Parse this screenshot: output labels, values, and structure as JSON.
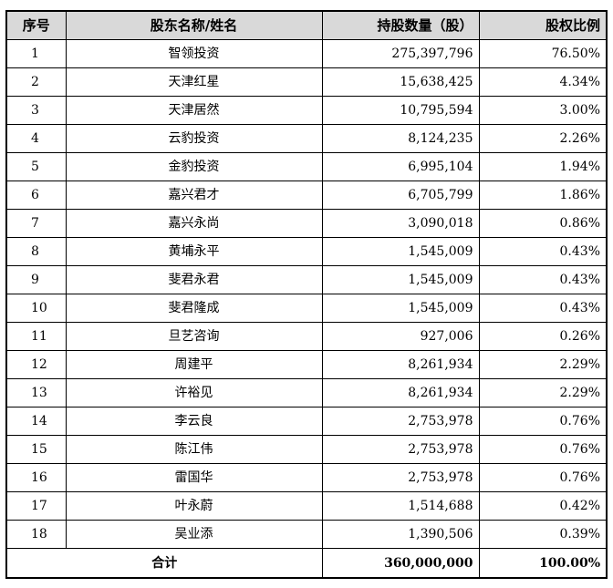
{
  "table": {
    "headers": [
      "序号",
      "股东名称/姓名",
      "持股数量（股）",
      "股权比例"
    ],
    "rows": [
      {
        "no": "1",
        "name": "智领投资",
        "shares": "275,397,796",
        "ratio": "76.50%"
      },
      {
        "no": "2",
        "name": "天津红星",
        "shares": "15,638,425",
        "ratio": "4.34%"
      },
      {
        "no": "3",
        "name": "天津居然",
        "shares": "10,795,594",
        "ratio": "3.00%"
      },
      {
        "no": "4",
        "name": "云豹投资",
        "shares": "8,124,235",
        "ratio": "2.26%"
      },
      {
        "no": "5",
        "name": "金豹投资",
        "shares": "6,995,104",
        "ratio": "1.94%"
      },
      {
        "no": "6",
        "name": "嘉兴君才",
        "shares": "6,705,799",
        "ratio": "1.86%"
      },
      {
        "no": "7",
        "name": "嘉兴永尚",
        "shares": "3,090,018",
        "ratio": "0.86%"
      },
      {
        "no": "8",
        "name": "黄埔永平",
        "shares": "1,545,009",
        "ratio": "0.43%"
      },
      {
        "no": "9",
        "name": "斐君永君",
        "shares": "1,545,009",
        "ratio": "0.43%"
      },
      {
        "no": "10",
        "name": "斐君隆成",
        "shares": "1,545,009",
        "ratio": "0.43%"
      },
      {
        "no": "11",
        "name": "旦艺咨询",
        "shares": "927,006",
        "ratio": "0.26%"
      },
      {
        "no": "12",
        "name": "周建平",
        "shares": "8,261,934",
        "ratio": "2.29%"
      },
      {
        "no": "13",
        "name": "许裕见",
        "shares": "8,261,934",
        "ratio": "2.29%"
      },
      {
        "no": "14",
        "name": "李云良",
        "shares": "2,753,978",
        "ratio": "0.76%"
      },
      {
        "no": "15",
        "name": "陈江伟",
        "shares": "2,753,978",
        "ratio": "0.76%"
      },
      {
        "no": "16",
        "name": "雷国华",
        "shares": "2,753,978",
        "ratio": "0.76%"
      },
      {
        "no": "17",
        "name": "叶永蔚",
        "shares": "1,514,688",
        "ratio": "0.42%"
      },
      {
        "no": "18",
        "name": "吴业添",
        "shares": "1,390,506",
        "ratio": "0.39%"
      }
    ],
    "total": {
      "label": "合计",
      "shares": "360,000,000",
      "ratio": "100.00%"
    }
  },
  "colors": {
    "header_bg": "#d9d9d9",
    "border": "#000000"
  }
}
